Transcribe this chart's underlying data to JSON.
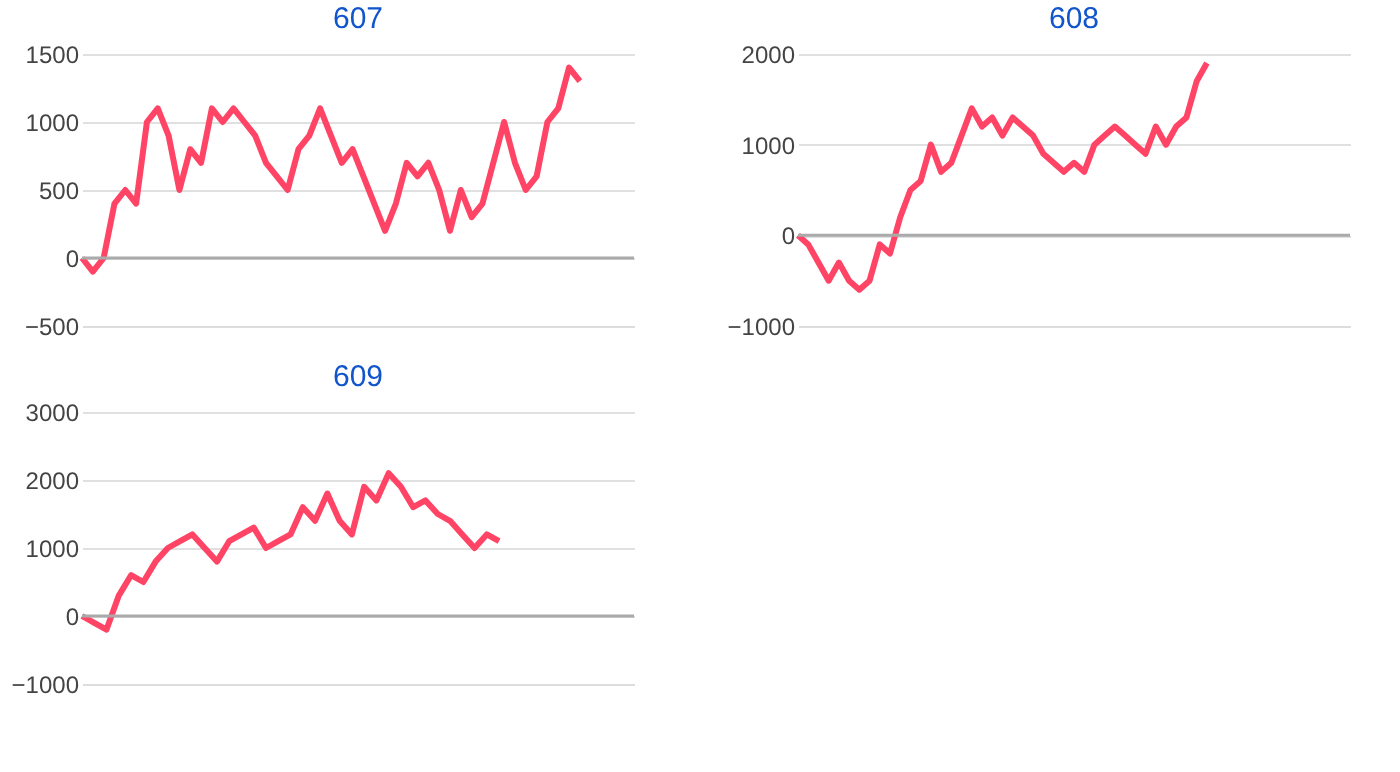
{
  "chart_data": [
    {
      "type": "line",
      "title": "607",
      "categories": [
        null,
        null,
        null,
        null,
        null,
        null,
        null,
        null,
        null,
        null,
        null,
        null,
        null,
        null,
        null,
        null,
        null,
        null,
        null,
        null,
        null,
        null,
        null,
        null,
        null,
        null,
        null,
        null,
        null,
        null,
        null,
        null,
        null,
        null,
        null,
        null,
        null,
        null,
        null,
        null,
        null,
        null,
        null,
        null,
        null,
        null,
        null,
        null,
        null,
        null,
        null,
        null
      ],
      "series": [
        {
          "color": "#ff4466",
          "values": [
            0,
            -100,
            0,
            400,
            500,
            400,
            1000,
            1100,
            900,
            500,
            800,
            700,
            1100,
            1000,
            1100,
            1000,
            900,
            700,
            600,
            500,
            800,
            900,
            1100,
            900,
            700,
            800,
            600,
            400,
            200,
            400,
            700,
            600,
            700,
            500,
            200,
            500,
            300,
            400,
            700,
            1000,
            700,
            500,
            600,
            1000,
            1100,
            1400,
            1300,
            null,
            null,
            null,
            null,
            null
          ]
        }
      ],
      "ylim": [
        -500,
        1500
      ],
      "yticks": [
        -500,
        0,
        500,
        1000,
        1500
      ],
      "grid": "y",
      "tick_labels": "y",
      "line_style": "solid",
      "ref_lines": [
        {
          "axis": "y",
          "value": 0,
          "color": "#aaaaaa"
        }
      ]
    },
    {
      "type": "line",
      "title": "608",
      "categories": [
        null,
        null,
        null,
        null,
        null,
        null,
        null,
        null,
        null,
        null,
        null,
        null,
        null,
        null,
        null,
        null,
        null,
        null,
        null,
        null,
        null,
        null,
        null,
        null,
        null,
        null,
        null,
        null,
        null,
        null,
        null,
        null,
        null,
        null,
        null,
        null,
        null,
        null,
        null,
        null,
        null,
        null,
        null,
        null,
        null,
        null,
        null,
        null,
        null,
        null,
        null,
        null,
        null,
        null,
        null
      ],
      "series": [
        {
          "color": "#ff4466",
          "values": [
            0,
            -100,
            -300,
            -500,
            -300,
            -500,
            -600,
            -500,
            -100,
            -200,
            200,
            500,
            600,
            1000,
            700,
            800,
            1100,
            1400,
            1200,
            1300,
            1100,
            1300,
            1200,
            1100,
            900,
            800,
            700,
            800,
            700,
            1000,
            1100,
            1200,
            1100,
            1000,
            900,
            1200,
            1000,
            1200,
            1300,
            1700,
            1900,
            null,
            null,
            null,
            null,
            null,
            null,
            null,
            null,
            null,
            null,
            null,
            null,
            null,
            null
          ]
        }
      ],
      "ylim": [
        -1000,
        2000
      ],
      "yticks": [
        -1000,
        0,
        1000,
        2000
      ],
      "grid": "y",
      "tick_labels": "y",
      "line_style": "solid",
      "ref_lines": [
        {
          "axis": "y",
          "value": 0,
          "color": "#aaaaaa"
        }
      ]
    },
    {
      "type": "line",
      "title": "609",
      "categories": [
        null,
        null,
        null,
        null,
        null,
        null,
        null,
        null,
        null,
        null,
        null,
        null,
        null,
        null,
        null,
        null,
        null,
        null,
        null,
        null,
        null,
        null,
        null,
        null,
        null,
        null,
        null,
        null,
        null,
        null,
        null,
        null,
        null,
        null,
        null,
        null,
        null,
        null,
        null,
        null,
        null,
        null,
        null,
        null,
        null,
        null
      ],
      "series": [
        {
          "color": "#ff4466",
          "values": [
            0,
            -100,
            -200,
            300,
            600,
            500,
            800,
            1000,
            1100,
            1200,
            1000,
            800,
            1100,
            1200,
            1300,
            1000,
            1100,
            1200,
            1600,
            1400,
            1800,
            1400,
            1200,
            1900,
            1700,
            2100,
            1900,
            1600,
            1700,
            1500,
            1400,
            1200,
            1000,
            1200,
            1100,
            null,
            null,
            null,
            null,
            null,
            null,
            null,
            null,
            null,
            null,
            null
          ]
        }
      ],
      "ylim": [
        -1000,
        3000
      ],
      "yticks": [
        -1000,
        0,
        1000,
        2000,
        3000
      ],
      "grid": "y",
      "tick_labels": "y",
      "line_style": "solid",
      "ref_lines": [
        {
          "axis": "y",
          "value": 0,
          "color": "#aaaaaa"
        }
      ]
    }
  ]
}
